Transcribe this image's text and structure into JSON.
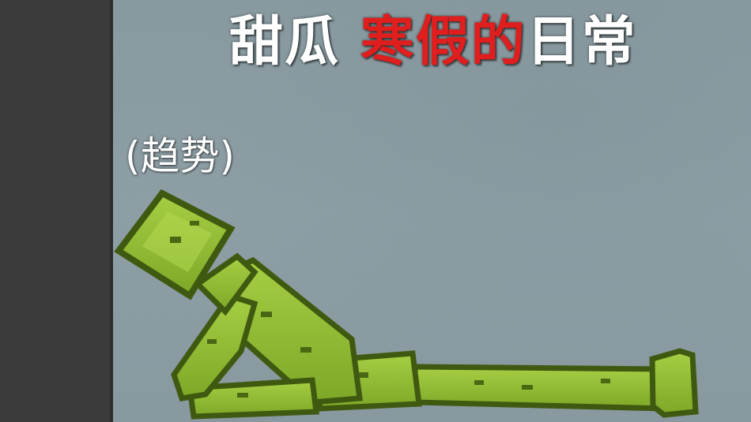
{
  "title": {
    "part1": "甜瓜 ",
    "part2": "寒假的",
    "part3": "日常"
  },
  "caption": "(趋势)",
  "colors": {
    "side_panel": "#3b3b3b",
    "background": "#8b9ba1",
    "melon_light": "#9ac43a",
    "melon_mid": "#7fa82a",
    "melon_dark": "#3f5a10",
    "title_white": "#ffffff",
    "title_red": "#e01e1e"
  },
  "scene": {
    "character": "melon-ragdoll",
    "pose": "reclining"
  }
}
